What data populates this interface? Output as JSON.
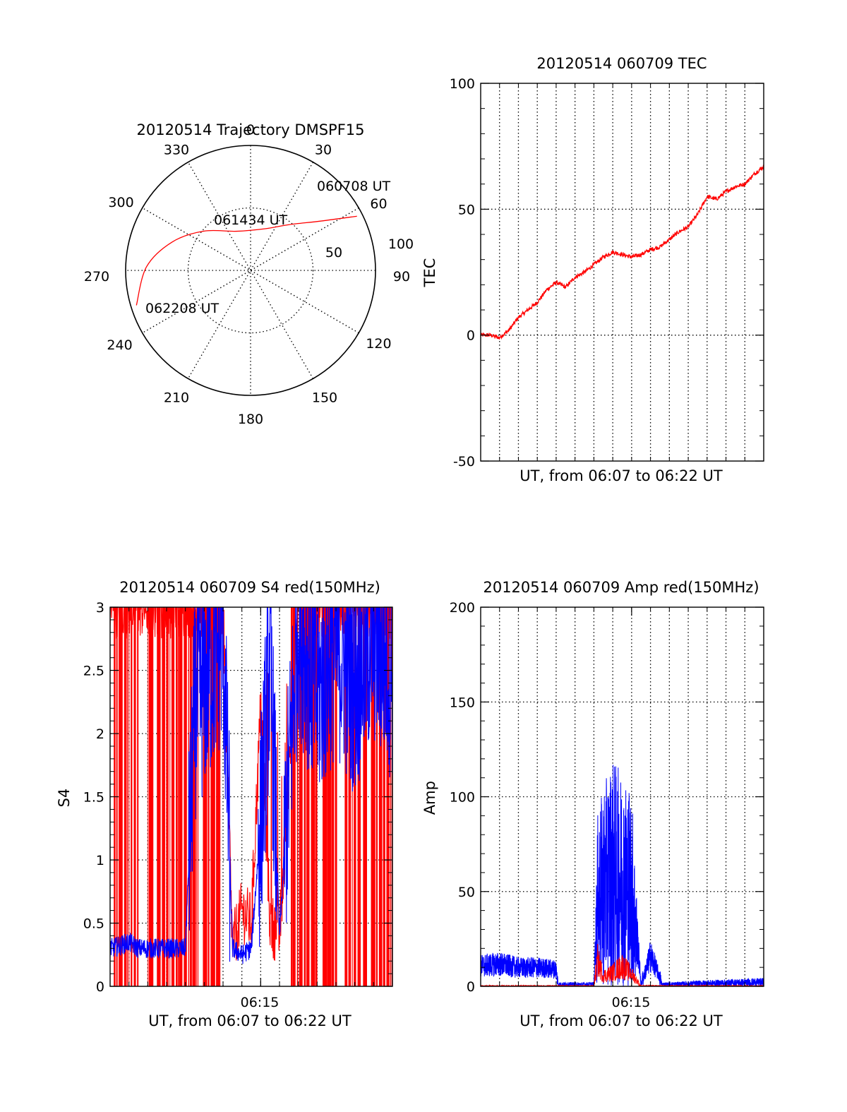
{
  "colors": {
    "primary": "#ff0000",
    "secondary": "#0000ff",
    "axes": "#000000"
  },
  "chart_data": [
    {
      "type": "polar",
      "title": "20120514 Trajectory DMSPF15",
      "azimuth_labels": [
        "0",
        "30",
        "60",
        "90",
        "120",
        "150",
        "180",
        "210",
        "240",
        "270",
        "300",
        "330"
      ],
      "radial_labels": [
        "50",
        "100"
      ],
      "trajectory": {
        "color": "red",
        "points": [
          {
            "az": 63,
            "el": 4
          },
          {
            "az": 55,
            "el": 28
          },
          {
            "az": 40,
            "el": 47
          },
          {
            "az": 20,
            "el": 58
          },
          {
            "az": 340,
            "el": 60
          },
          {
            "az": 310,
            "el": 46
          },
          {
            "az": 290,
            "el": 30
          },
          {
            "az": 272,
            "el": 15
          },
          {
            "az": 253,
            "el": 4
          }
        ]
      },
      "annotations": [
        "060708 UT",
        "061434 UT",
        "062208 UT"
      ]
    },
    {
      "type": "line",
      "title": "20120514 060709 TEC",
      "ylabel": "TEC",
      "xlabel": "UT, from 06:07 to 06:22 UT",
      "ylim": [
        -50,
        100
      ],
      "yticks": [
        "-50",
        "0",
        "50",
        "100"
      ],
      "grid": true,
      "series": [
        {
          "color": "red",
          "x": [
            0,
            0.5,
            1,
            1.5,
            2,
            2.5,
            3,
            3.5,
            4,
            4.5,
            5,
            5.5,
            6,
            6.5,
            7,
            7.5,
            8,
            8.5,
            9,
            9.5,
            10,
            10.5,
            11,
            11.5,
            12,
            12.5,
            13,
            13.5,
            14,
            14.5,
            15
          ],
          "values": [
            0,
            0,
            -1,
            2,
            7,
            10,
            13,
            18,
            21,
            19,
            23,
            25,
            28,
            31,
            33,
            32,
            31,
            32,
            34,
            35,
            38,
            41,
            43,
            48,
            55,
            54,
            57,
            59,
            60,
            64,
            67
          ]
        }
      ]
    },
    {
      "type": "line",
      "title": "20120514 060709 S4 red(150MHz)",
      "ylabel": "S4",
      "xlabel": "UT, from 06:07 to 06:22 UT",
      "xtick_label": "06:15",
      "ylim": [
        0,
        3
      ],
      "yticks": [
        "0",
        "0.5",
        "1",
        "1.5",
        "2",
        "2.5",
        "3"
      ],
      "grid": true,
      "series": [
        {
          "color": "red",
          "x": [
            0,
            1,
            2,
            3,
            4,
            5,
            6,
            6.5,
            7,
            7.5,
            8,
            8.5,
            9,
            10,
            11,
            12,
            13,
            14,
            15
          ],
          "values": [
            3,
            3,
            3,
            3,
            3,
            3,
            3,
            0.3,
            0.6,
            0.5,
            2.2,
            0.5,
            0.4,
            3,
            3,
            3,
            3,
            3,
            3
          ]
        },
        {
          "color": "blue",
          "x": [
            0,
            0.5,
            1,
            1.5,
            2,
            2.5,
            3,
            3.5,
            4,
            4.5,
            5,
            5.5,
            6,
            6.5,
            7,
            7.5,
            8,
            8.5,
            9,
            10,
            11,
            12,
            13,
            14,
            15
          ],
          "values": [
            0.3,
            0.32,
            0.35,
            0.3,
            0.3,
            0.3,
            0.3,
            0.3,
            0.3,
            2.2,
            2.4,
            2.6,
            2.8,
            0.3,
            0.25,
            0.3,
            1.3,
            2.6,
            0.4,
            2.9,
            2.3,
            2.7,
            2.4,
            2.8,
            2.5
          ]
        }
      ]
    },
    {
      "type": "line",
      "title": "20120514 060709 Amp red(150MHz)",
      "ylabel": "Amp",
      "xlabel": "UT, from 06:07 to 06:22 UT",
      "xtick_label": "06:15",
      "ylim": [
        0,
        200
      ],
      "yticks": [
        "0",
        "50",
        "100",
        "150",
        "200"
      ],
      "grid": true,
      "series": [
        {
          "color": "red",
          "x": [
            0,
            6,
            6.2,
            6.5,
            7,
            7.5,
            8,
            8.5,
            15
          ],
          "values": [
            0.5,
            0.5,
            15,
            6,
            8,
            12,
            7,
            0.5,
            0.5
          ]
        },
        {
          "color": "blue",
          "x": [
            0,
            1,
            2,
            3,
            4,
            4.1,
            5,
            6,
            6.2,
            6.5,
            7,
            7.5,
            8,
            8.5,
            9,
            9.4,
            9.6,
            10,
            12,
            15
          ],
          "values": [
            12,
            13,
            11,
            11,
            10,
            1,
            1,
            1,
            60,
            70,
            80,
            75,
            70,
            1,
            18,
            8,
            1,
            1,
            1.5,
            2
          ]
        }
      ]
    }
  ]
}
